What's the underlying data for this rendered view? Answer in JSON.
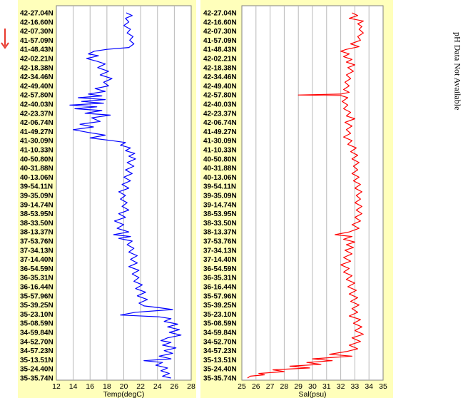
{
  "note": "pH Data Not Available",
  "latitudes": [
    "42-27.04N",
    "42-16.60N",
    "42-07.30N",
    "41-57.09N",
    "41-48.43N",
    "42-02.21N",
    "42-18.38N",
    "42-34.46N",
    "42-49.40N",
    "42-57.80N",
    "42-40.03N",
    "42-23.37N",
    "42-06.74N",
    "41-49.27N",
    "41-30.09N",
    "41-10.33N",
    "40-50.80N",
    "40-31.88N",
    "40-13.06N",
    "39-54.11N",
    "39-35.09N",
    "39-14.74N",
    "38-53.95N",
    "38-33.50N",
    "38-13.37N",
    "37-53.76N",
    "37-34.13N",
    "37-14.40N",
    "36-54.59N",
    "36-35.31N",
    "36-16.44N",
    "35-57.96N",
    "35-39.25N",
    "35-23.10N",
    "35-08.59N",
    "34-59.84N",
    "34-52.70N",
    "34-57.23N",
    "35-13.51N",
    "35-24.40N",
    "35-35.74N"
  ],
  "colors": {
    "temp": "#0000ff",
    "sal": "#ff0000",
    "arrow": "#e8382c",
    "panel": "#ffffbb"
  },
  "chart_data": [
    {
      "type": "line",
      "xlabel": "Temp(degC)",
      "xlim": [
        12,
        28
      ],
      "xticks": [
        12,
        14,
        16,
        18,
        20,
        22,
        24,
        26,
        28
      ],
      "grid": true,
      "series": [
        {
          "values": [
            [
              20.3,
              0
            ],
            [
              21.0,
              0.3
            ],
            [
              20.2,
              0.6
            ],
            [
              20.6,
              1
            ],
            [
              20.0,
              1.4
            ],
            [
              20.8,
              1.8
            ],
            [
              20.4,
              2.2
            ],
            [
              21.1,
              2.6
            ],
            [
              20.7,
              3
            ],
            [
              21.2,
              3.4
            ],
            [
              20.6,
              3.8
            ],
            [
              18.0,
              4
            ],
            [
              16.5,
              4.2
            ],
            [
              15.8,
              4.5
            ],
            [
              17.0,
              4.7
            ],
            [
              15.6,
              5
            ],
            [
              16.8,
              5.3
            ],
            [
              17.8,
              5.6
            ],
            [
              16.9,
              6
            ],
            [
              18.2,
              6.4
            ],
            [
              17.2,
              6.8
            ],
            [
              18.6,
              7.2
            ],
            [
              17.6,
              7.6
            ],
            [
              18.2,
              8
            ],
            [
              16.6,
              8.3
            ],
            [
              17.8,
              8.6
            ],
            [
              15.8,
              8.9
            ],
            [
              17.4,
              9.1
            ],
            [
              14.6,
              9.3
            ],
            [
              17.8,
              9.5
            ],
            [
              15.0,
              9.7
            ],
            [
              17.6,
              9.9
            ],
            [
              13.6,
              10.1
            ],
            [
              16.8,
              10.3
            ],
            [
              14.2,
              10.5
            ],
            [
              17.4,
              10.7
            ],
            [
              15.4,
              11
            ],
            [
              18.4,
              11.2
            ],
            [
              16.2,
              11.5
            ],
            [
              17.2,
              11.9
            ],
            [
              14.8,
              12.2
            ],
            [
              16.4,
              12.5
            ],
            [
              14.0,
              12.8
            ],
            [
              15.8,
              13.1
            ],
            [
              17.8,
              13.4
            ],
            [
              16.0,
              13.7
            ],
            [
              18.6,
              14
            ],
            [
              20.2,
              14.2
            ],
            [
              19.6,
              14.5
            ],
            [
              20.8,
              14.8
            ],
            [
              20.2,
              15.1
            ],
            [
              21.3,
              15.4
            ],
            [
              20.6,
              15.7
            ],
            [
              21.4,
              16
            ],
            [
              20.4,
              16.4
            ],
            [
              21.2,
              16.8
            ],
            [
              20.2,
              17.2
            ],
            [
              21.0,
              17.6
            ],
            [
              20.0,
              18
            ],
            [
              20.8,
              18.4
            ],
            [
              19.8,
              18.8
            ],
            [
              20.6,
              19.2
            ],
            [
              19.4,
              19.6
            ],
            [
              20.2,
              20
            ],
            [
              19.6,
              20.4
            ],
            [
              20.4,
              20.8
            ],
            [
              19.8,
              21.2
            ],
            [
              20.6,
              21.6
            ],
            [
              19.4,
              22
            ],
            [
              20.2,
              22.4
            ],
            [
              18.9,
              22.8
            ],
            [
              20.0,
              23.2
            ],
            [
              19.2,
              23.6
            ],
            [
              20.6,
              24
            ],
            [
              18.8,
              24.3
            ],
            [
              20.8,
              24.5
            ],
            [
              19.4,
              24.7
            ],
            [
              21.0,
              25
            ],
            [
              20.4,
              25.4
            ],
            [
              21.2,
              25.8
            ],
            [
              20.6,
              26.2
            ],
            [
              21.6,
              26.6
            ],
            [
              20.8,
              27
            ],
            [
              21.6,
              27.4
            ],
            [
              20.6,
              27.8
            ],
            [
              21.8,
              28.2
            ],
            [
              21.0,
              28.6
            ],
            [
              21.8,
              29
            ],
            [
              21.2,
              29.4
            ],
            [
              22.2,
              29.8
            ],
            [
              21.4,
              30.2
            ],
            [
              22.6,
              30.6
            ],
            [
              21.6,
              31
            ],
            [
              22.8,
              31.4
            ],
            [
              21.8,
              31.8
            ],
            [
              22.4,
              32.1
            ],
            [
              24.2,
              32.3
            ],
            [
              25.8,
              32.5
            ],
            [
              21.4,
              32.8
            ],
            [
              19.6,
              33.1
            ],
            [
              24.2,
              33.3
            ],
            [
              25.6,
              33.5
            ],
            [
              24.8,
              33.8
            ],
            [
              26.4,
              34.1
            ],
            [
              25.2,
              34.4
            ],
            [
              26.6,
              34.7
            ],
            [
              25.4,
              35
            ],
            [
              26.8,
              35.3
            ],
            [
              25.2,
              35.6
            ],
            [
              24.4,
              35.9
            ],
            [
              25.6,
              36.1
            ],
            [
              24.6,
              36.4
            ],
            [
              26.2,
              36.7
            ],
            [
              24.8,
              37
            ],
            [
              25.8,
              37.3
            ],
            [
              24.2,
              37.6
            ],
            [
              25.6,
              37.9
            ],
            [
              22.4,
              38.1
            ],
            [
              24.6,
              38.3
            ],
            [
              23.8,
              38.6
            ],
            [
              25.2,
              38.9
            ],
            [
              24.4,
              39.2
            ],
            [
              25.4,
              39.5
            ],
            [
              24.6,
              39.8
            ],
            [
              25.6,
              40
            ]
          ]
        }
      ]
    },
    {
      "type": "line",
      "xlabel": "Sal(psu)",
      "xlim": [
        25,
        35
      ],
      "xticks": [
        25,
        26,
        27,
        28,
        29,
        30,
        31,
        32,
        33,
        34,
        35
      ],
      "grid": true,
      "series": [
        {
          "values": [
            [
              32.8,
              0
            ],
            [
              33.2,
              0.3
            ],
            [
              32.6,
              0.6
            ],
            [
              33.6,
              0.9
            ],
            [
              33.2,
              1.2
            ],
            [
              33.5,
              1.5
            ],
            [
              33.3,
              1.8
            ],
            [
              33.6,
              2.2
            ],
            [
              33.2,
              2.6
            ],
            [
              33.4,
              3
            ],
            [
              32.7,
              3.4
            ],
            [
              33.3,
              3.7
            ],
            [
              32.4,
              4
            ],
            [
              32.0,
              4.2
            ],
            [
              32.6,
              4.5
            ],
            [
              32.2,
              4.8
            ],
            [
              32.8,
              5.1
            ],
            [
              32.4,
              5.4
            ],
            [
              33.0,
              5.7
            ],
            [
              32.5,
              6
            ],
            [
              32.9,
              6.4
            ],
            [
              32.4,
              6.8
            ],
            [
              32.7,
              7.2
            ],
            [
              32.3,
              7.6
            ],
            [
              32.6,
              8
            ],
            [
              32.2,
              8.4
            ],
            [
              32.6,
              8.7
            ],
            [
              32.0,
              8.9
            ],
            [
              29.0,
              9
            ],
            [
              32.0,
              9.05
            ],
            [
              32.5,
              9.3
            ],
            [
              32.1,
              9.7
            ],
            [
              32.5,
              10.1
            ],
            [
              32.2,
              10.5
            ],
            [
              32.7,
              10.9
            ],
            [
              32.4,
              11.3
            ],
            [
              33.0,
              11.6
            ],
            [
              32.3,
              12
            ],
            [
              32.8,
              12.4
            ],
            [
              32.4,
              12.8
            ],
            [
              32.7,
              13.2
            ],
            [
              32.2,
              13.6
            ],
            [
              32.8,
              14
            ],
            [
              32.5,
              14.4
            ],
            [
              33.1,
              14.8
            ],
            [
              32.7,
              15.2
            ],
            [
              33.2,
              15.6
            ],
            [
              32.8,
              16
            ],
            [
              33.3,
              16.4
            ],
            [
              32.9,
              16.8
            ],
            [
              33.2,
              17.2
            ],
            [
              32.8,
              17.6
            ],
            [
              33.3,
              18
            ],
            [
              32.9,
              18.4
            ],
            [
              33.4,
              18.8
            ],
            [
              33.0,
              19.2
            ],
            [
              33.5,
              19.6
            ],
            [
              33.1,
              20
            ],
            [
              33.4,
              20.4
            ],
            [
              33.0,
              20.8
            ],
            [
              33.5,
              21.2
            ],
            [
              33.1,
              21.6
            ],
            [
              33.5,
              22
            ],
            [
              33.0,
              22.4
            ],
            [
              33.4,
              22.8
            ],
            [
              32.8,
              23.2
            ],
            [
              33.3,
              23.6
            ],
            [
              32.6,
              24
            ],
            [
              31.6,
              24.3
            ],
            [
              32.8,
              24.5
            ],
            [
              32.2,
              24.8
            ],
            [
              33.0,
              25.1
            ],
            [
              32.4,
              25.4
            ],
            [
              32.9,
              25.7
            ],
            [
              32.3,
              26
            ],
            [
              32.8,
              26.4
            ],
            [
              32.2,
              26.8
            ],
            [
              32.7,
              27.2
            ],
            [
              32.0,
              27.6
            ],
            [
              32.6,
              28
            ],
            [
              32.2,
              28.4
            ],
            [
              32.8,
              28.8
            ],
            [
              32.4,
              29.2
            ],
            [
              33.0,
              29.6
            ],
            [
              32.5,
              30
            ],
            [
              33.1,
              30.4
            ],
            [
              32.6,
              30.8
            ],
            [
              33.2,
              31.2
            ],
            [
              32.7,
              31.6
            ],
            [
              33.3,
              32
            ],
            [
              32.8,
              32.4
            ],
            [
              33.2,
              32.8
            ],
            [
              32.6,
              33.2
            ],
            [
              33.4,
              33.6
            ],
            [
              32.9,
              34
            ],
            [
              33.5,
              34.4
            ],
            [
              33.0,
              34.8
            ],
            [
              33.6,
              35.2
            ],
            [
              32.8,
              35.6
            ],
            [
              33.4,
              36
            ],
            [
              32.6,
              36.4
            ],
            [
              33.2,
              36.8
            ],
            [
              32.4,
              37.1
            ],
            [
              31.2,
              37.4
            ],
            [
              32.8,
              37.6
            ],
            [
              30.0,
              37.9
            ],
            [
              31.4,
              38.1
            ],
            [
              29.6,
              38.3
            ],
            [
              30.6,
              38.5
            ],
            [
              28.4,
              38.7
            ],
            [
              29.8,
              38.9
            ],
            [
              27.2,
              39.1
            ],
            [
              28.0,
              39.3
            ],
            [
              26.2,
              39.5
            ],
            [
              26.6,
              39.65
            ],
            [
              25.6,
              39.8
            ],
            [
              25.4,
              40
            ]
          ]
        }
      ]
    }
  ]
}
